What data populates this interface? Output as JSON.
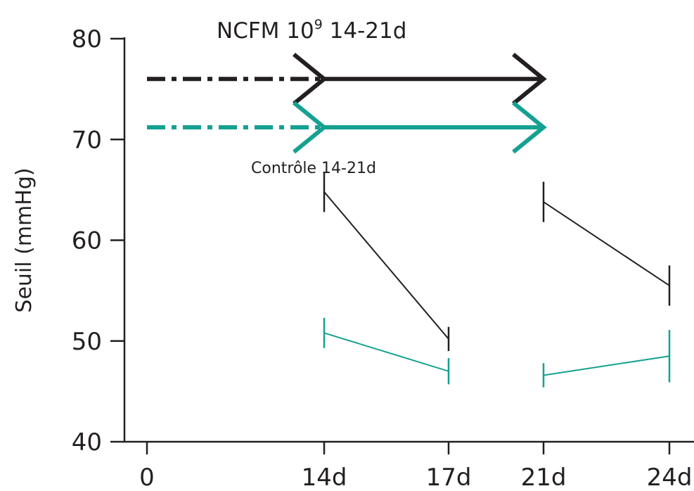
{
  "chart_data": {
    "type": "line",
    "title": "",
    "xlabel": "",
    "ylabel": "Seuil (mmHg)",
    "ylim": [
      40,
      80
    ],
    "yticks": [
      40,
      50,
      60,
      70,
      80
    ],
    "x_ticks": [
      {
        "day": 0,
        "label": "0"
      },
      {
        "day": 14,
        "label": "14d"
      },
      {
        "day": 17,
        "label": "17d"
      },
      {
        "day": 21,
        "label": "21d"
      },
      {
        "day": 24,
        "label": "24d"
      }
    ],
    "grid": false,
    "annotations": {
      "top": {
        "text": "NCFM 10",
        "superscript": "9",
        "suffix": " 14-21d"
      },
      "bottom": {
        "text": "Contrôle 14-21d"
      }
    },
    "colors": {
      "ncfm": "#231f20",
      "control": "#15a191",
      "axis": "#231f20"
    },
    "arrows": [
      {
        "group": "ncfm",
        "y": 76,
        "dashed_from": 0,
        "solid_from": 14,
        "to": 21
      },
      {
        "group": "control",
        "y": 71.2,
        "dashed_from": 0,
        "solid_from": 14,
        "to": 21
      }
    ],
    "series": [
      {
        "group": "ncfm",
        "segments": [
          {
            "points": [
              {
                "x": 14,
                "y": 64.8,
                "err": 2.0
              },
              {
                "x": 17,
                "y": 50.2,
                "err": 1.2
              }
            ]
          },
          {
            "points": [
              {
                "x": 21,
                "y": 63.8,
                "err": 2.0
              },
              {
                "x": 24,
                "y": 55.5,
                "err": 2.0
              }
            ]
          }
        ]
      },
      {
        "group": "control",
        "segments": [
          {
            "points": [
              {
                "x": 14,
                "y": 50.8,
                "err": 1.5
              },
              {
                "x": 17,
                "y": 47.0,
                "err": 1.3
              }
            ]
          },
          {
            "points": [
              {
                "x": 21,
                "y": 46.6,
                "err": 1.2
              },
              {
                "x": 24,
                "y": 48.5,
                "err": 2.6
              }
            ]
          }
        ]
      }
    ]
  }
}
